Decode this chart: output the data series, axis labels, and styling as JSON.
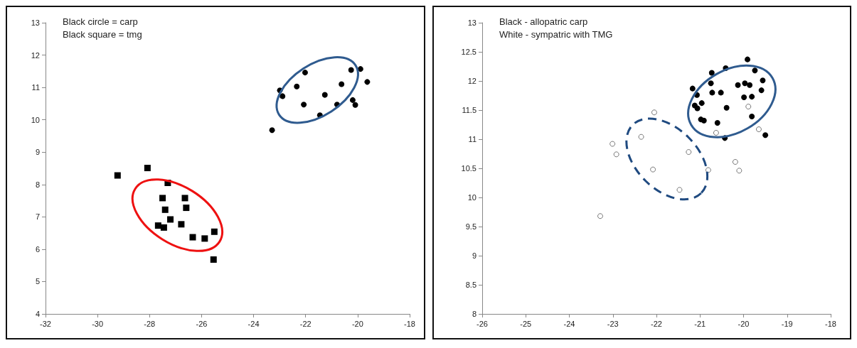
{
  "chart_data": [
    {
      "type": "scatter",
      "annotations": [
        "Black circle = carp",
        "Black square = tmg"
      ],
      "xlim": [
        -32,
        -18
      ],
      "xticks": [
        -32,
        -30,
        -28,
        -26,
        -24,
        -22,
        -20,
        -18
      ],
      "ylim": [
        4,
        13
      ],
      "yticks": [
        4,
        5,
        6,
        7,
        8,
        9,
        10,
        11,
        12,
        13
      ],
      "grid": false,
      "series": [
        {
          "color": "#000000",
          "marker": "square",
          "x": [
            -29.23,
            -28.08,
            -27.3,
            -27.5,
            -26.64,
            -27.4,
            -26.59,
            -27.2,
            -26.78,
            -27.67,
            -27.45,
            -26.34,
            -25.88,
            -25.51,
            -25.54
          ],
          "values": [
            8.28,
            8.51,
            8.05,
            7.58,
            7.58,
            7.22,
            7.28,
            6.92,
            6.77,
            6.73,
            6.67,
            6.37,
            6.33,
            6.54,
            5.68
          ]
        },
        {
          "color": "#000000",
          "marker": "circle",
          "x": [
            -23.29,
            -22.99,
            -22.89,
            -22.34,
            -22.02,
            -22.07,
            -21.45,
            -21.26,
            -20.79,
            -20.62,
            -20.25,
            -20.19,
            -20.09,
            -19.89,
            -19.63
          ],
          "values": [
            9.68,
            10.91,
            10.73,
            11.03,
            11.46,
            10.47,
            10.14,
            10.77,
            10.47,
            11.1,
            11.54,
            10.61,
            10.46,
            11.57,
            11.17
          ]
        }
      ]
    },
    {
      "type": "scatter",
      "annotations": [
        "Black - allopatric carp",
        "White - sympatric with TMG"
      ],
      "xlim": [
        -26,
        -18
      ],
      "xticks": [
        -26,
        -25,
        -24,
        -23,
        -22,
        -21,
        -20,
        -19,
        -18
      ],
      "ylim": [
        8,
        13
      ],
      "yticks": [
        8,
        8.5,
        9,
        9.5,
        10,
        10.5,
        11,
        11.5,
        12,
        12.5,
        13
      ],
      "grid": false,
      "marker": "circle",
      "series": [
        {
          "color": "#ffffff",
          "x": [
            -22.05,
            -22.35,
            -23.01,
            -22.92,
            -22.08,
            -21.26,
            -20.81,
            -21.47,
            -23.29,
            -20.63,
            -20.19,
            -20.1,
            -19.89,
            -19.65
          ],
          "values": [
            11.46,
            11.04,
            10.92,
            10.74,
            10.48,
            10.78,
            10.47,
            10.13,
            9.68,
            11.11,
            10.61,
            10.46,
            11.56,
            11.17
          ]
        },
        {
          "color": "#000000",
          "x": [
            -19.91,
            -20.41,
            -19.74,
            -20.73,
            -21.17,
            -20.75,
            -21.07,
            -20.72,
            -20.52,
            -20.13,
            -19.97,
            -19.86,
            -19.56,
            -19.59,
            -19.99,
            -19.81,
            -20.96,
            -21.12,
            -21.06,
            -20.39,
            -20.98,
            -20.91,
            -20.6,
            -19.81,
            -20.43,
            -19.5
          ],
          "values": [
            12.37,
            12.22,
            12.18,
            12.14,
            11.87,
            11.96,
            11.76,
            11.8,
            11.8,
            11.93,
            11.96,
            11.93,
            12.01,
            11.84,
            11.72,
            11.73,
            11.62,
            11.58,
            11.53,
            11.54,
            11.34,
            11.32,
            11.28,
            11.39,
            11.02,
            11.07
          ]
        }
      ]
    }
  ]
}
